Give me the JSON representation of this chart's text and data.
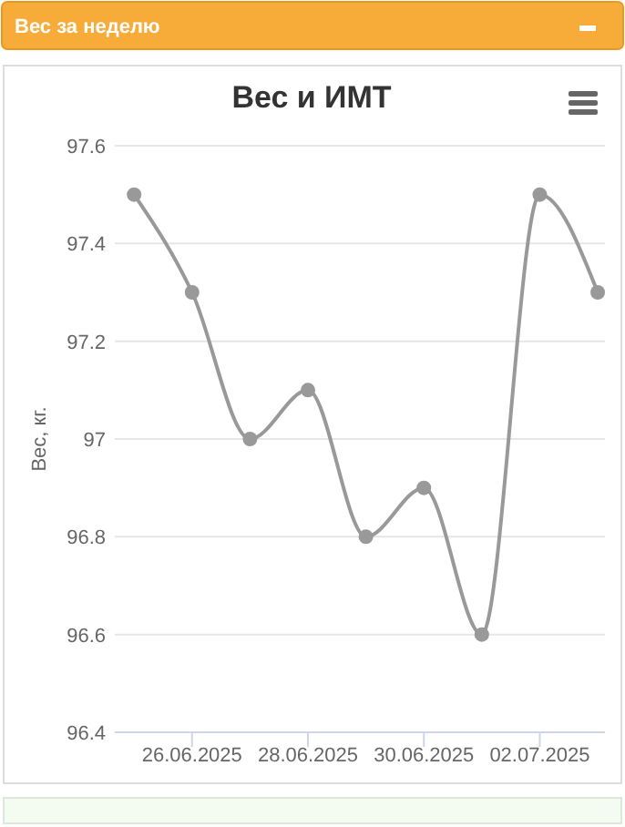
{
  "chart_data": {
    "type": "line",
    "title": "Вес и ИМТ",
    "ylabel": "Вес, кг.",
    "annotations": [
      "Вес за неделю"
    ],
    "x": [
      "2025-06-25",
      "2025-06-26",
      "2025-06-27",
      "2025-06-28",
      "2025-06-29",
      "2025-06-30",
      "2025-07-01",
      "2025-07-02",
      "2025-07-03"
    ],
    "series": [
      {
        "color": "#999999",
        "values": [
          97.5,
          97.3,
          97.0,
          97.1,
          96.8,
          96.9,
          96.6,
          97.5,
          97.3
        ]
      }
    ],
    "xlim": [
      "2025-06-24T16:00",
      "2025-07-03T03:00"
    ],
    "xticks": [
      {
        "value": "2025-06-26",
        "label": "26.06.2025"
      },
      {
        "value": "2025-06-28",
        "label": "28.06.2025"
      },
      {
        "value": "2025-06-30",
        "label": "30.06.2025"
      },
      {
        "value": "2025-07-02",
        "label": "02.07.2025"
      }
    ],
    "ylim": [
      96.4,
      97.6
    ],
    "yticks": [
      96.4,
      96.6,
      96.8,
      97,
      97.2,
      97.4,
      97.6
    ],
    "grid": "y",
    "marker": "circle",
    "line_style": "solid"
  }
}
